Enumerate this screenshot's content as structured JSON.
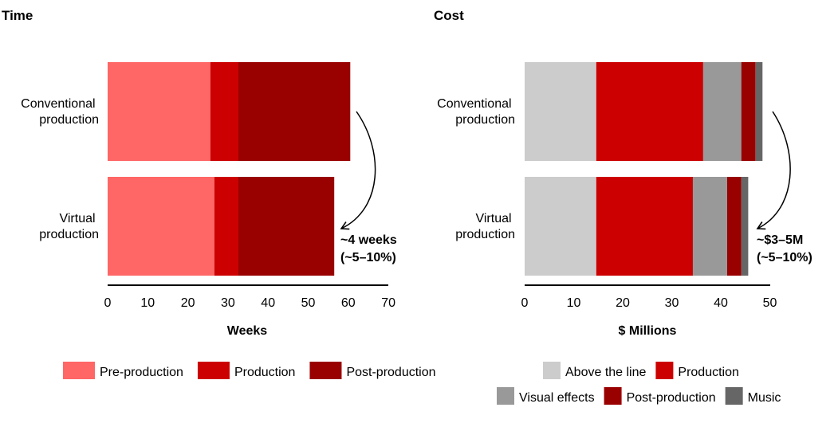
{
  "chart_data": [
    {
      "type": "bar",
      "orientation": "horizontal",
      "stacked": true,
      "title": "Time",
      "xlabel": "Weeks",
      "xlim": [
        0,
        70
      ],
      "xticks": [
        "0",
        "10",
        "20",
        "30",
        "40",
        "50",
        "60",
        "70"
      ],
      "categories": [
        {
          "lines": [
            "Conventional",
            "production"
          ]
        },
        {
          "lines": [
            "Virtual",
            "production"
          ]
        }
      ],
      "series": [
        {
          "name": "Pre-production",
          "color": "#ff6666",
          "values": [
            25.6,
            26.6
          ]
        },
        {
          "name": "Production",
          "color": "#cc0000",
          "values": [
            7.0,
            6.0
          ]
        },
        {
          "name": "Post-production",
          "color": "#990000",
          "values": [
            27.9,
            23.9
          ]
        }
      ],
      "legend_rows": [
        [
          0,
          1,
          2
        ]
      ],
      "annotation": {
        "lines": [
          "~4 weeks",
          "(~5–10%)"
        ]
      }
    },
    {
      "type": "bar",
      "orientation": "horizontal",
      "stacked": true,
      "title": "Cost",
      "xlabel": "$ Millions",
      "xlim": [
        0,
        50
      ],
      "xticks": [
        "0",
        "10",
        "20",
        "30",
        "40",
        "50"
      ],
      "categories": [
        {
          "lines": [
            "Conventional",
            "production"
          ]
        },
        {
          "lines": [
            "Virtual",
            "production"
          ]
        }
      ],
      "series": [
        {
          "name": "Above the line",
          "color": "#cccccc",
          "values": [
            14.6,
            14.6
          ]
        },
        {
          "name": "Production",
          "color": "#cc0000",
          "values": [
            21.8,
            19.7
          ]
        },
        {
          "name": "Visual effects",
          "color": "#999999",
          "values": [
            7.8,
            7.0
          ]
        },
        {
          "name": "Post-production",
          "color": "#990000",
          "values": [
            2.9,
            2.9
          ]
        },
        {
          "name": "Music",
          "color": "#666666",
          "values": [
            1.4,
            1.4
          ]
        }
      ],
      "legend_rows": [
        [
          0,
          1
        ],
        [
          2,
          3,
          4
        ]
      ],
      "annotation": {
        "lines": [
          "~$3–5M",
          "(~5–10%)"
        ]
      }
    }
  ]
}
